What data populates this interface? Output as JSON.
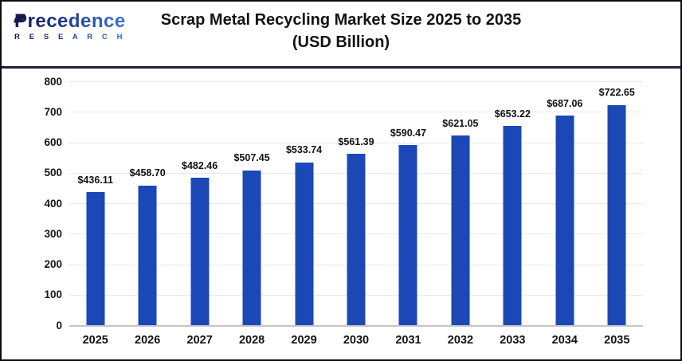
{
  "brand": {
    "name": "Precedence",
    "sub": "R E S E A R C H",
    "color_start": "#141a4d",
    "color_end": "#3b77d2"
  },
  "title": {
    "line1": "Scrap Metal Recycling Market Size 2025 to 2035",
    "line2": "(USD Billion)"
  },
  "chart_data": {
    "type": "bar",
    "title": "Scrap Metal Recycling Market Size 2025 to 2035 (USD Billion)",
    "categories": [
      "2025",
      "2026",
      "2027",
      "2028",
      "2029",
      "2030",
      "2031",
      "2032",
      "2033",
      "2034",
      "2035"
    ],
    "values": [
      436.11,
      458.7,
      482.46,
      507.45,
      533.74,
      561.39,
      590.47,
      621.05,
      653.22,
      687.06,
      722.65
    ],
    "value_labels": [
      "$436.11",
      "$458.70",
      "$482.46",
      "$507.45",
      "$533.74",
      "$561.39",
      "$590.47",
      "$621.05",
      "$653.22",
      "$687.06",
      "$722.65"
    ],
    "xlabel": "",
    "ylabel": "",
    "ylim": [
      0,
      800
    ],
    "ytick_step": 100,
    "grid": true,
    "legend": false,
    "bar_color": "#1b47b7",
    "axis_color": "#c4c4c4",
    "grid_color": "#e8e8e8"
  }
}
